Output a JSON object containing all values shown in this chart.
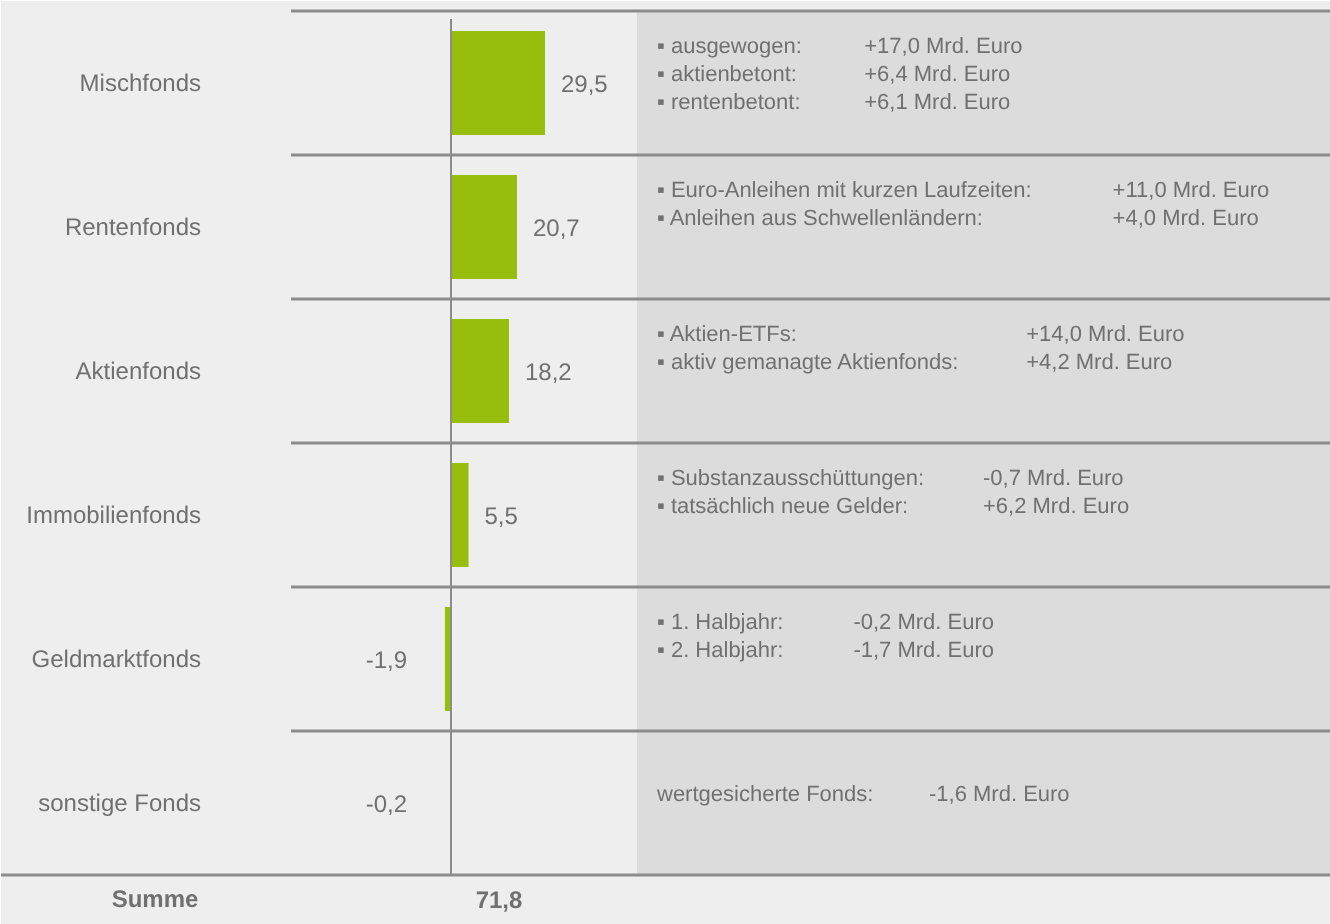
{
  "chart_data": {
    "type": "bar",
    "orientation": "horizontal",
    "categories": [
      "Mischfonds",
      "Rentenfonds",
      "Aktienfonds",
      "Immobilienfonds",
      "Geldmarktfonds",
      "sonstige Fonds"
    ],
    "values": [
      29.5,
      20.7,
      18.2,
      5.5,
      -1.9,
      -0.2
    ],
    "color": "#97bd0d",
    "value_labels": [
      "29,5",
      "20,7",
      "18,2",
      "5,5",
      "-1,9",
      "-0,2"
    ],
    "annotations": [
      "▪ ausgewogen: +17,0 Mrd. Euro\n▪ aktienbetont: +6,4 Mrd. Euro\n▪ rentenbetont: +6,1 Mrd. Euro",
      "▪ Euro-Anleihen mit kurzen Laufzeiten: +11,0 Mrd. Euro\n▪ Anleihen aus Schwellenländern: +4,0 Mrd. Euro",
      "▪ Aktien-ETFs: +14,0 Mrd. Euro\n▪ aktiv gemanagte Aktienfonds: +4,2 Mrd. Euro",
      "▪ Substanzausschüttungen: -0,7 Mrd. Euro\n▪ tatsächlich neue Gelder: +6,2 Mrd. Euro",
      "▪ 1. Halbjahr: -0,2 Mrd. Euro\n▪ 2. Halbjahr: -1,7 Mrd. Euro",
      "wertgesicherte Fonds: -1,6 Mrd. Euro",
      "Summe",
      "71,8"
    ]
  }
}
